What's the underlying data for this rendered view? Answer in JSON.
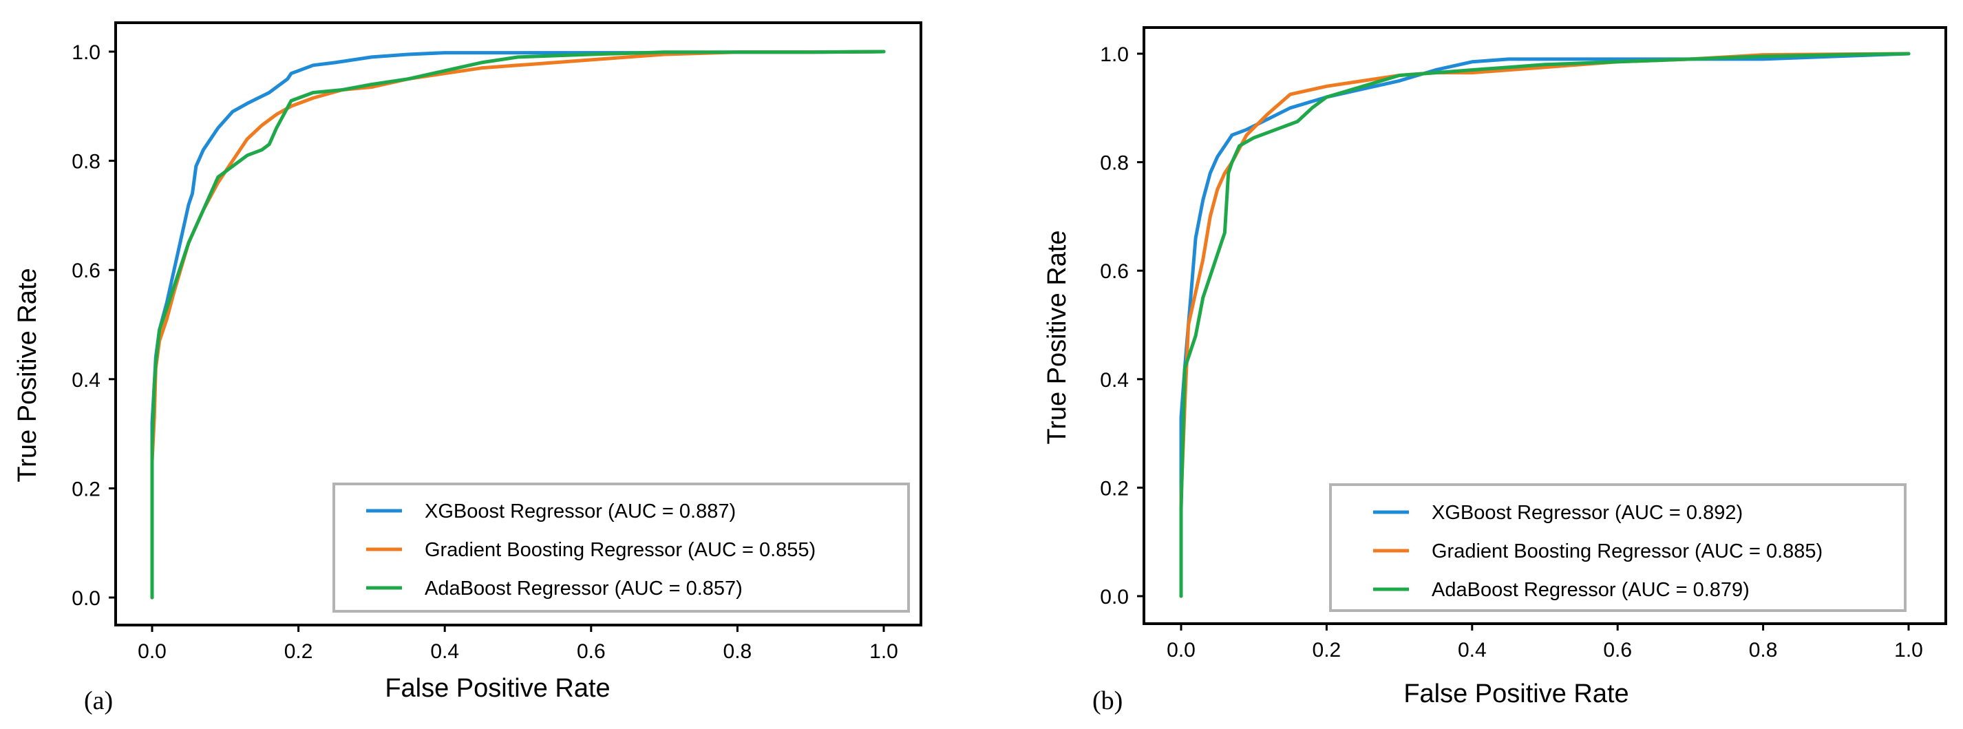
{
  "chart_data": [
    {
      "type": "line",
      "panel_label": "(a)",
      "xlabel": "False Positive Rate",
      "ylabel": "True Positive Rate",
      "xlim": [
        0,
        1
      ],
      "ylim": [
        0,
        1
      ],
      "xticks": [
        {
          "v": 0.0,
          "label": "0.0"
        },
        {
          "v": 0.2,
          "label": "0.2"
        },
        {
          "v": 0.4,
          "label": "0.4"
        },
        {
          "v": 0.6,
          "label": "0.6"
        },
        {
          "v": 0.8,
          "label": "0.8"
        },
        {
          "v": 1.0,
          "label": "1.0"
        }
      ],
      "yticks": [
        {
          "v": 0.0,
          "label": "0.0"
        },
        {
          "v": 0.2,
          "label": "0.2"
        },
        {
          "v": 0.4,
          "label": "0.4"
        },
        {
          "v": 0.6,
          "label": "0.6"
        },
        {
          "v": 0.8,
          "label": "0.8"
        },
        {
          "v": 1.0,
          "label": "1.0"
        }
      ],
      "legend_position": "bottom-right",
      "series": [
        {
          "name": "XGBoost Regressor (AUC = 0.887)",
          "color": "#1f8ad6",
          "x": [
            0,
            0,
            0.003,
            0.005,
            0.01,
            0.02,
            0.03,
            0.04,
            0.05,
            0.055,
            0.06,
            0.07,
            0.09,
            0.11,
            0.13,
            0.16,
            0.185,
            0.19,
            0.2,
            0.22,
            0.25,
            0.3,
            0.35,
            0.4,
            0.5,
            0.6,
            0.7,
            0.8,
            0.9,
            1.0
          ],
          "y": [
            0,
            0.32,
            0.39,
            0.44,
            0.49,
            0.54,
            0.6,
            0.66,
            0.72,
            0.74,
            0.79,
            0.82,
            0.86,
            0.89,
            0.905,
            0.925,
            0.95,
            0.96,
            0.965,
            0.975,
            0.98,
            0.99,
            0.995,
            0.998,
            0.998,
            0.998,
            0.998,
            0.999,
            0.999,
            1.0
          ]
        },
        {
          "name": "Gradient Boosting Regressor (AUC = 0.855)",
          "color": "#f07a1f",
          "x": [
            0,
            0,
            0.003,
            0.005,
            0.01,
            0.02,
            0.03,
            0.05,
            0.07,
            0.09,
            0.11,
            0.13,
            0.15,
            0.17,
            0.19,
            0.22,
            0.26,
            0.3,
            0.35,
            0.4,
            0.45,
            0.5,
            0.6,
            0.7,
            0.8,
            0.9,
            1.0
          ],
          "y": [
            0,
            0.25,
            0.33,
            0.42,
            0.47,
            0.51,
            0.56,
            0.65,
            0.71,
            0.76,
            0.8,
            0.84,
            0.865,
            0.885,
            0.9,
            0.915,
            0.93,
            0.935,
            0.95,
            0.96,
            0.97,
            0.975,
            0.985,
            0.995,
            0.999,
            0.999,
            1.0
          ]
        },
        {
          "name": "AdaBoost Regressor (AUC = 0.857)",
          "color": "#1fa84a",
          "x": [
            0,
            0,
            0.003,
            0.005,
            0.01,
            0.02,
            0.03,
            0.05,
            0.07,
            0.09,
            0.11,
            0.13,
            0.15,
            0.16,
            0.17,
            0.19,
            0.22,
            0.26,
            0.3,
            0.35,
            0.4,
            0.45,
            0.5,
            0.6,
            0.7,
            0.8,
            0.9,
            1.0
          ],
          "y": [
            0,
            0.28,
            0.39,
            0.43,
            0.49,
            0.53,
            0.57,
            0.65,
            0.71,
            0.77,
            0.79,
            0.81,
            0.82,
            0.83,
            0.86,
            0.91,
            0.925,
            0.93,
            0.94,
            0.95,
            0.965,
            0.98,
            0.99,
            0.995,
            0.999,
            0.999,
            0.999,
            1.0
          ]
        }
      ]
    },
    {
      "type": "line",
      "panel_label": "(b)",
      "xlabel": "False Positive Rate",
      "ylabel": "True Positive Rate",
      "xlim": [
        0,
        1
      ],
      "ylim": [
        0,
        1
      ],
      "xticks": [
        {
          "v": 0.0,
          "label": "0.0"
        },
        {
          "v": 0.2,
          "label": "0.2"
        },
        {
          "v": 0.4,
          "label": "0.4"
        },
        {
          "v": 0.6,
          "label": "0.6"
        },
        {
          "v": 0.8,
          "label": "0.8"
        },
        {
          "v": 1.0,
          "label": "1.0"
        }
      ],
      "yticks": [
        {
          "v": 0.0,
          "label": "0.0"
        },
        {
          "v": 0.2,
          "label": "0.2"
        },
        {
          "v": 0.4,
          "label": "0.4"
        },
        {
          "v": 0.6,
          "label": "0.6"
        },
        {
          "v": 0.8,
          "label": "0.8"
        },
        {
          "v": 1.0,
          "label": "1.0"
        }
      ],
      "legend_position": "bottom-right",
      "series": [
        {
          "name": "XGBoost Regressor (AUC = 0.892)",
          "color": "#1f8ad6",
          "x": [
            0,
            0,
            0.005,
            0.01,
            0.015,
            0.02,
            0.03,
            0.04,
            0.05,
            0.06,
            0.07,
            0.09,
            0.12,
            0.15,
            0.2,
            0.25,
            0.3,
            0.35,
            0.4,
            0.45,
            0.5,
            0.6,
            0.7,
            0.8,
            0.9,
            1.0
          ],
          "y": [
            0,
            0.33,
            0.42,
            0.5,
            0.58,
            0.66,
            0.73,
            0.78,
            0.81,
            0.83,
            0.85,
            0.86,
            0.88,
            0.9,
            0.92,
            0.935,
            0.95,
            0.97,
            0.985,
            0.99,
            0.99,
            0.99,
            0.99,
            0.99,
            0.995,
            1.0
          ]
        },
        {
          "name": "Gradient Boosting Regressor (AUC = 0.885)",
          "color": "#f07a1f",
          "x": [
            0,
            0,
            0.005,
            0.01,
            0.02,
            0.03,
            0.04,
            0.05,
            0.06,
            0.07,
            0.09,
            0.12,
            0.15,
            0.2,
            0.25,
            0.3,
            0.35,
            0.4,
            0.5,
            0.6,
            0.7,
            0.8,
            0.9,
            1.0
          ],
          "y": [
            0,
            0.18,
            0.35,
            0.5,
            0.56,
            0.62,
            0.7,
            0.75,
            0.78,
            0.8,
            0.85,
            0.89,
            0.925,
            0.94,
            0.95,
            0.96,
            0.965,
            0.965,
            0.975,
            0.985,
            0.99,
            0.998,
            0.999,
            1.0
          ]
        },
        {
          "name": "AdaBoost Regressor (AUC = 0.879)",
          "color": "#1fa84a",
          "x": [
            0,
            0,
            0.005,
            0.01,
            0.02,
            0.03,
            0.04,
            0.05,
            0.06,
            0.065,
            0.07,
            0.08,
            0.1,
            0.13,
            0.16,
            0.18,
            0.2,
            0.25,
            0.3,
            0.35,
            0.4,
            0.45,
            0.5,
            0.6,
            0.7,
            0.8,
            0.9,
            1.0
          ],
          "y": [
            0,
            0.16,
            0.42,
            0.44,
            0.48,
            0.55,
            0.59,
            0.63,
            0.67,
            0.78,
            0.8,
            0.83,
            0.845,
            0.86,
            0.875,
            0.9,
            0.92,
            0.94,
            0.96,
            0.965,
            0.97,
            0.975,
            0.98,
            0.985,
            0.99,
            0.995,
            0.998,
            1.0
          ]
        }
      ]
    }
  ]
}
